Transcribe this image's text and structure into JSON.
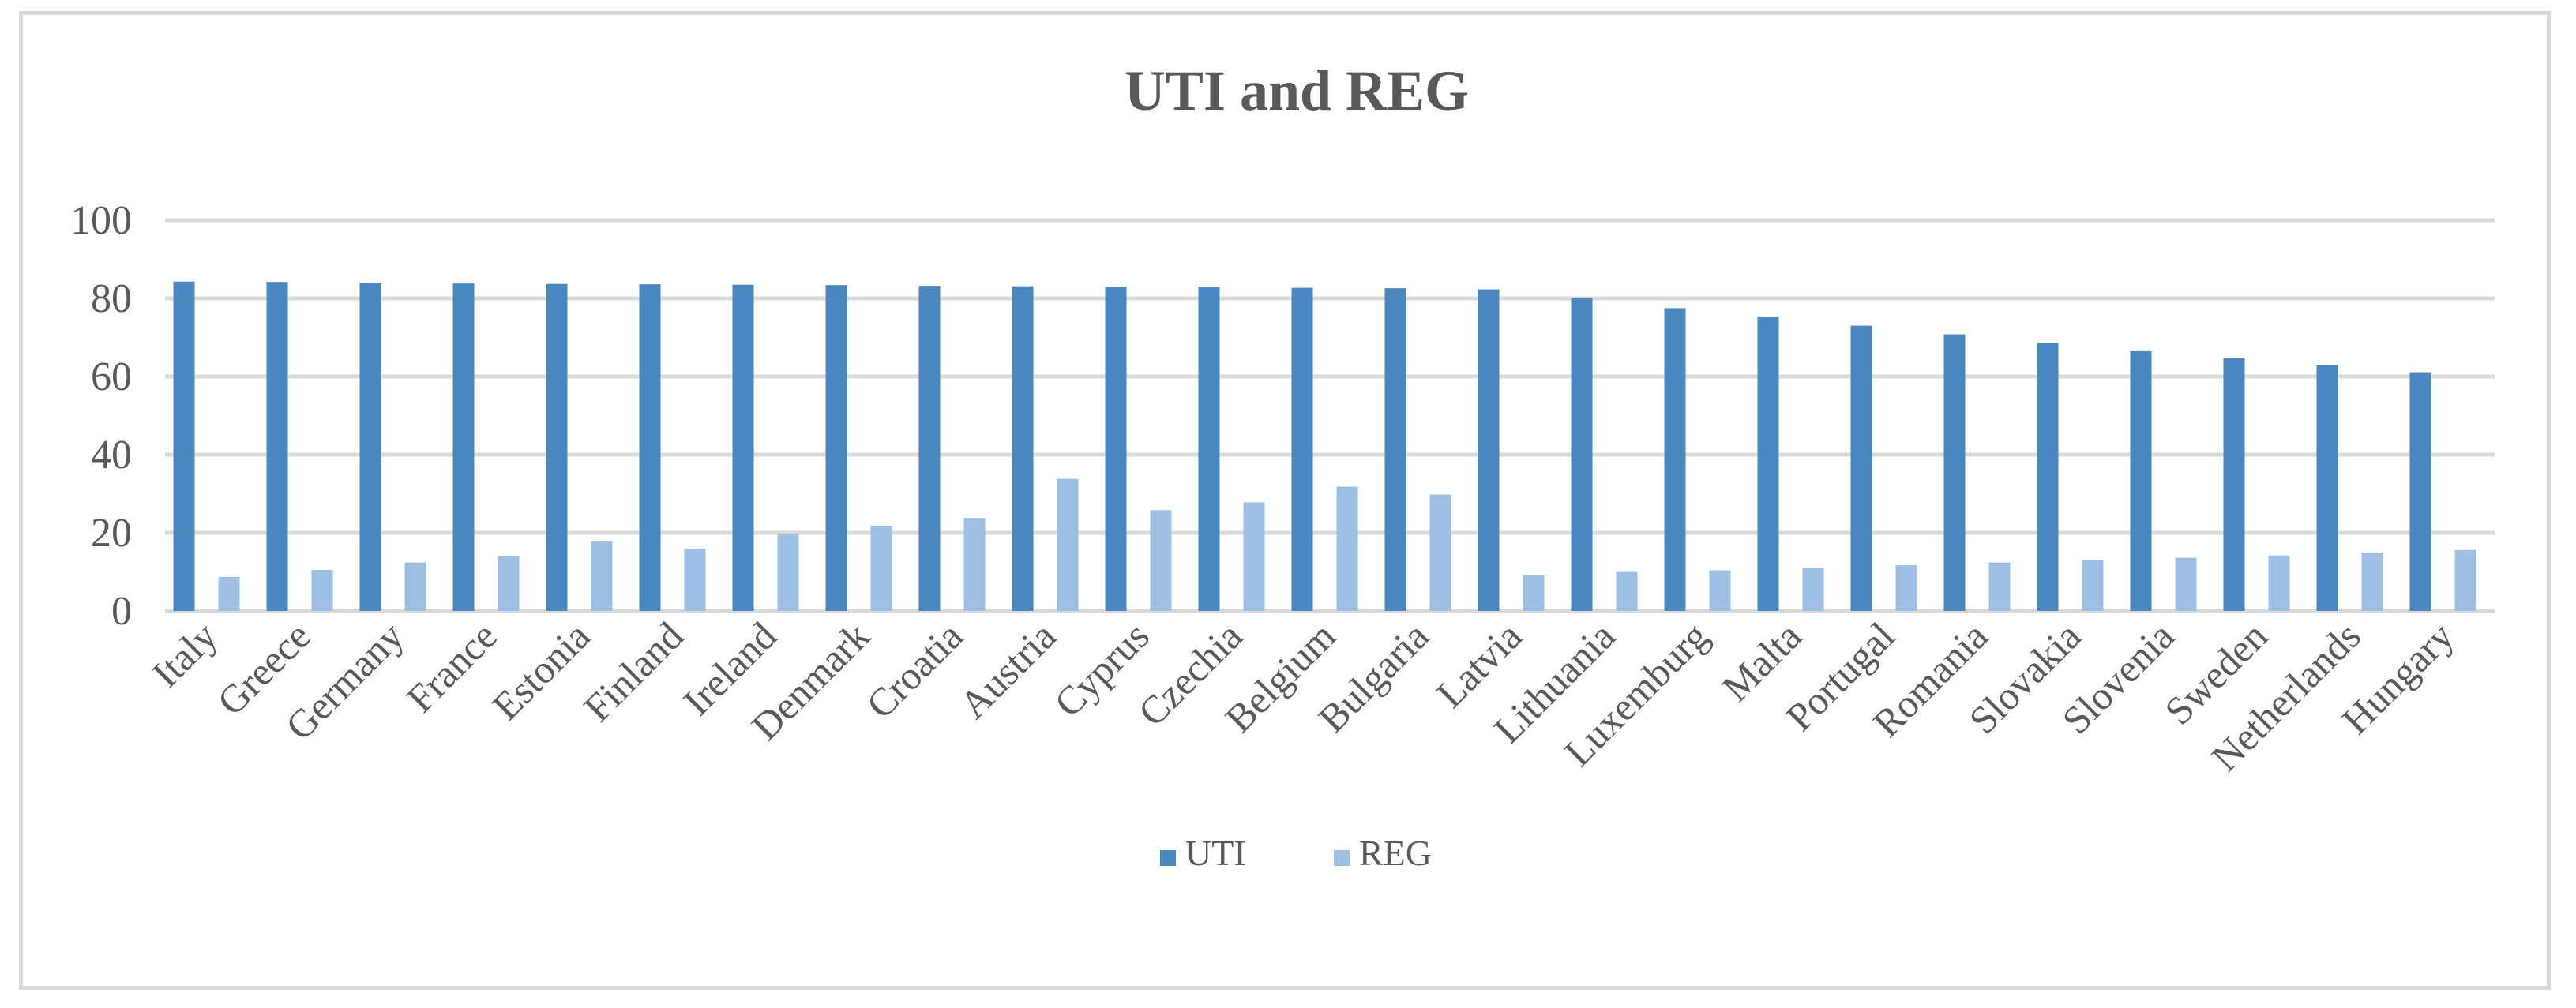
{
  "chart_data": {
    "type": "bar",
    "title": "UTI and REG",
    "xlabel": "",
    "ylabel": "",
    "ylim": [
      0,
      100
    ],
    "yticks": [
      0,
      20,
      40,
      60,
      80,
      100
    ],
    "grid": true,
    "legend_position": "bottom",
    "categories": [
      "Italy",
      "Greece",
      "Germany",
      "France",
      "Estonia",
      "Finland",
      "Ireland",
      "Denmark",
      "Croatia",
      "Austria",
      "Cyprus",
      "Czechia",
      "Belgium",
      "Bulgaria",
      "Latvia",
      "Lithuania",
      "Luxemburg",
      "Malta",
      "Portugal",
      "Romania",
      "Slovakia",
      "Slovenia",
      "Sweden",
      "Netherlands",
      "Hungary"
    ],
    "series": [
      {
        "name": "UTI",
        "color": "#4a86c0",
        "values": [
          84.3,
          84.2,
          84.0,
          83.8,
          83.7,
          83.6,
          83.5,
          83.4,
          83.2,
          83.1,
          83.0,
          82.9,
          82.7,
          82.6,
          82.3,
          80.0,
          77.5,
          75.3,
          73.0,
          70.8,
          68.6,
          66.5,
          64.7,
          62.9,
          61.1
        ]
      },
      {
        "name": "REG",
        "color": "#9dbfe3",
        "values": [
          8.7,
          10.5,
          12.4,
          14.1,
          17.8,
          15.9,
          19.8,
          21.8,
          23.8,
          33.8,
          25.8,
          27.8,
          31.8,
          29.8,
          9.2,
          10.0,
          10.4,
          11.0,
          11.7,
          12.4,
          13.0,
          13.6,
          14.2,
          14.9,
          15.6
        ]
      }
    ]
  }
}
